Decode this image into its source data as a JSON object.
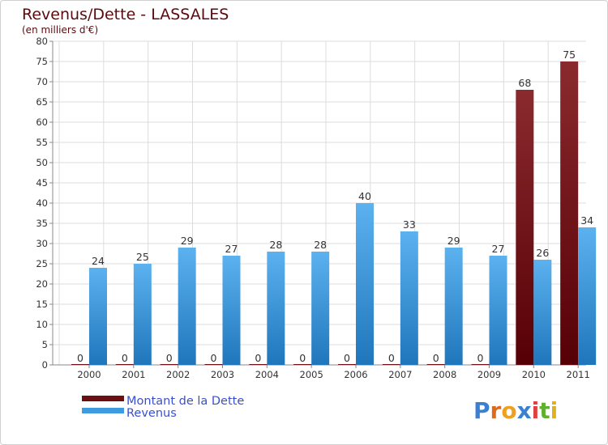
{
  "chart_data": {
    "type": "bar",
    "title": "Revenus/Dette - LASSALES",
    "subtitle": "(en milliers d'€)",
    "categories": [
      "2000",
      "2001",
      "2002",
      "2003",
      "2004",
      "2005",
      "2006",
      "2007",
      "2008",
      "2009",
      "2010",
      "2011"
    ],
    "series": [
      {
        "name": "Montant de la Dette",
        "color": "#6b0f13",
        "values": [
          0,
          0,
          0,
          0,
          0,
          0,
          0,
          0,
          0,
          0,
          68,
          75
        ]
      },
      {
        "name": "Revenus",
        "color": "#3f9be0",
        "values": [
          24,
          25,
          29,
          27,
          28,
          28,
          40,
          33,
          29,
          27,
          26,
          34
        ]
      }
    ],
    "ylim": [
      0,
      80
    ],
    "yticks": [
      0,
      5,
      10,
      15,
      20,
      25,
      30,
      35,
      40,
      45,
      50,
      55,
      60,
      65,
      70,
      75,
      80
    ],
    "grid": true,
    "legend_position": "bottom-left"
  },
  "logo": {
    "letters": [
      "P",
      "r",
      "o",
      "x",
      "i",
      "t",
      "i"
    ],
    "colors": [
      "#3a7fd0",
      "#e06a1c",
      "#f0a020",
      "#3a7fd0",
      "#e04040",
      "#60b030",
      "#e0b020"
    ]
  }
}
